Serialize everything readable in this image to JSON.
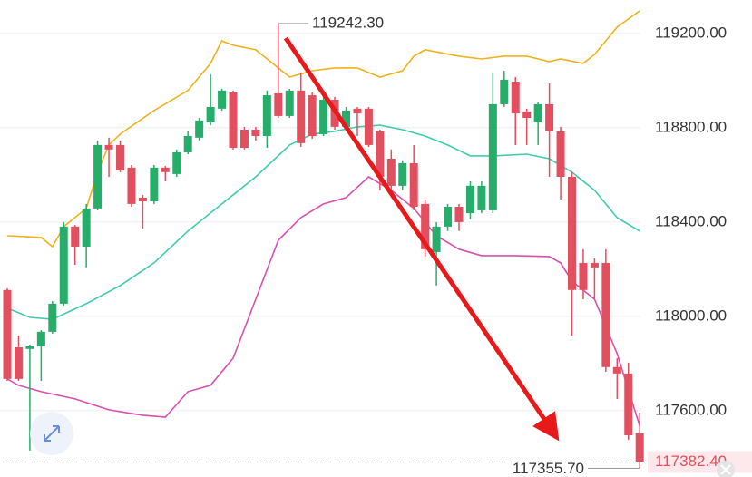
{
  "chart_data": {
    "type": "candlestick",
    "open": [
      118112,
      117869,
      117862,
      117873,
      117935,
      118054,
      118381,
      118296,
      118458,
      118727,
      118727,
      118631,
      118504,
      118488,
      118631,
      118604,
      118696,
      118758,
      118823,
      118881,
      118950,
      118792,
      118792,
      118765,
      118946,
      118850,
      118958,
      118938,
      118773,
      118919,
      118804,
      118881,
      118881,
      118785,
      118669,
      118554,
      118650,
      118477,
      118273,
      118381,
      118465,
      118438,
      118450,
      118450,
      118900,
      118996,
      118869,
      118823,
      118900,
      118785,
      118592,
      118227,
      118227,
      118227,
      117785,
      117758,
      117504
    ],
    "high": [
      118119,
      117919,
      117881,
      117942,
      118065,
      118400,
      118388,
      118477,
      118746,
      118758,
      118746,
      118642,
      118515,
      118642,
      118638,
      118708,
      118785,
      118842,
      119027,
      118965,
      118958,
      118804,
      118804,
      118958,
      119242.3,
      118965,
      119035,
      118950,
      118938,
      118931,
      118888,
      118888,
      118888,
      118792,
      118708,
      118662,
      118727,
      118496,
      118400,
      118477,
      118477,
      118573,
      118573,
      119035,
      119042,
      119015,
      118881,
      118911,
      118988,
      118804,
      118612,
      118285,
      118246,
      118285,
      117823,
      117804,
      117592
    ],
    "low": [
      117727,
      117727,
      117431,
      117727,
      117927,
      118046,
      118219,
      118208,
      118450,
      118592,
      118612,
      118465,
      118373,
      118477,
      118573,
      118592,
      118688,
      118746,
      118811,
      118873,
      118708,
      118708,
      118746,
      118715,
      118842,
      118842,
      118719,
      118754,
      118765,
      118792,
      118785,
      118765,
      118719,
      118535,
      118515,
      118535,
      118450,
      118254,
      118131,
      118362,
      118362,
      118412,
      118438,
      118438,
      118888,
      118727,
      118727,
      118727,
      118592,
      118496,
      117919,
      118073,
      118073,
      117765,
      117650,
      117477,
      117355.7
    ],
    "close": [
      117735,
      117735,
      117873,
      117935,
      118054,
      118381,
      118296,
      118458,
      118727,
      118708,
      118619,
      118477,
      118488,
      118631,
      118612,
      118696,
      118765,
      118831,
      118888,
      118958,
      118715,
      118715,
      118765,
      118938,
      118850,
      118958,
      118735,
      118765,
      118919,
      118804,
      118873,
      118861,
      118727,
      118592,
      118554,
      118650,
      118465,
      118285,
      118381,
      118465,
      118400,
      118554,
      118554,
      118900,
      119004,
      118861,
      118842,
      118900,
      118785,
      118592,
      118112,
      118112,
      118208,
      117785,
      117758,
      117496,
      117382.4
    ],
    "up_color": "#27ad6a",
    "down_color": "#e2505f",
    "series": [
      {
        "color": "#efb21d",
        "x": [
          0,
          3,
          4,
          5,
          7,
          8,
          9,
          10,
          13,
          16,
          18,
          19,
          20,
          22,
          24,
          25,
          27,
          29,
          31,
          33,
          35,
          36,
          37,
          40,
          42,
          44,
          46,
          48,
          49,
          51,
          52,
          54,
          56
        ],
        "values": [
          118342,
          118335,
          118296,
          118381,
          118458,
          118612,
          118727,
          118773,
          118873,
          118958,
          119073,
          119169,
          119150,
          119131,
          119054,
          119015,
          119042,
          119054,
          119054,
          119015,
          119042,
          119104,
          119131,
          119104,
          119092,
          119104,
          119104,
          119081,
          119092,
          119073,
          119111,
          119227,
          119296
        ]
      },
      {
        "color": "#3fcbae",
        "x": [
          0,
          2,
          4,
          7,
          10,
          13,
          16,
          19,
          22,
          25,
          27,
          29,
          31,
          33,
          35,
          37,
          39,
          41,
          43,
          46,
          48,
          50,
          52,
          54,
          56
        ],
        "values": [
          118035,
          117996,
          117988,
          118054,
          118131,
          118227,
          118362,
          118477,
          118592,
          118727,
          118773,
          118785,
          118804,
          118811,
          118792,
          118765,
          118727,
          118681,
          118681,
          118688,
          118669,
          118612,
          118535,
          118419,
          118362
        ]
      },
      {
        "color": "#d94fb4",
        "x": [
          0,
          1,
          3,
          6,
          9,
          12,
          14,
          16,
          18,
          20,
          22,
          24,
          26,
          28,
          30,
          32,
          34,
          36,
          38,
          40,
          42,
          45,
          48,
          49,
          50,
          52,
          54,
          56
        ],
        "values": [
          117735,
          117708,
          117681,
          117650,
          117604,
          117581,
          117573,
          117681,
          117708,
          117823,
          118073,
          118323,
          118419,
          118477,
          118504,
          118592,
          118535,
          118458,
          118342,
          118285,
          118258,
          118258,
          118254,
          118227,
          118150,
          118073,
          117842,
          117535
        ]
      }
    ],
    "ylim": [
      117319,
      119342
    ],
    "yticks": [
      {
        "value": 117600,
        "label": "117600.00"
      },
      {
        "value": 118000,
        "label": "118000.00"
      },
      {
        "value": 118400,
        "label": "118400.00"
      },
      {
        "value": 118800,
        "label": "118800.00"
      },
      {
        "value": 119200,
        "label": "119200.00"
      }
    ],
    "grid": true,
    "high_label": {
      "value": 119242.3,
      "label": "119242.30"
    },
    "low_label": {
      "value": 117355.7,
      "label": "117355.70"
    },
    "last_label": {
      "value": 117382.4,
      "label": "117382.40"
    }
  }
}
